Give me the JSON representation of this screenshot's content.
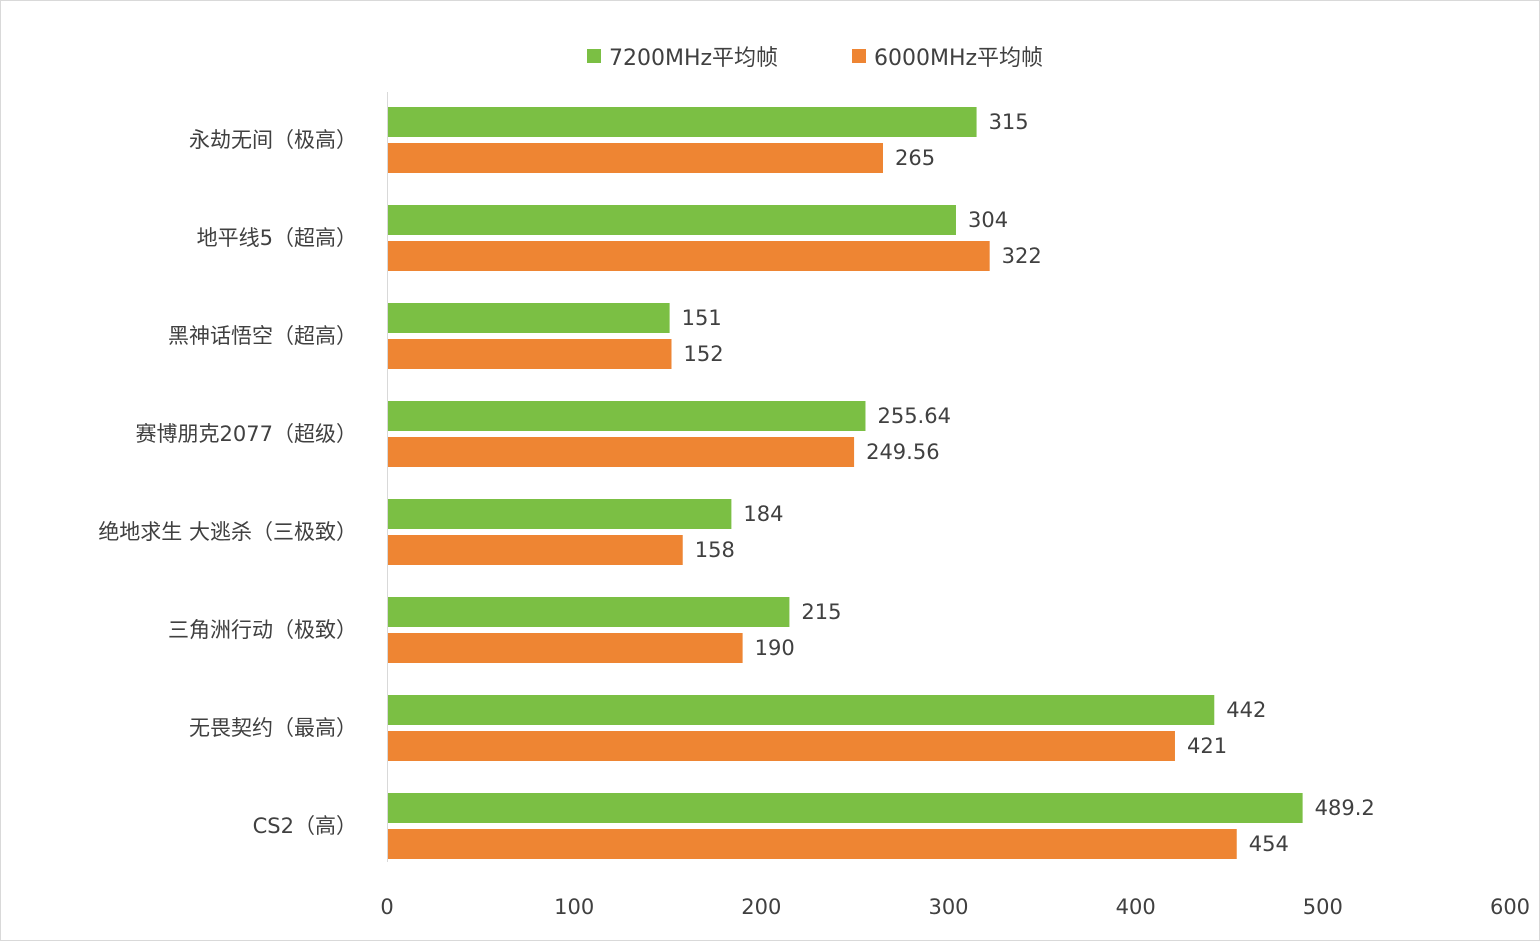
{
  "chart_data": {
    "type": "bar",
    "orientation": "horizontal",
    "categories": [
      "永劫无间（极高）",
      "地平线5（超高）",
      "黑神话悟空（超高）",
      "赛博朋克2077（超级）",
      "绝地求生 大逃杀（三极致）",
      "三角洲行动（极致）",
      "无畏契约（最高）",
      "CS2（高）"
    ],
    "series": [
      {
        "name": "7200MHz平均帧",
        "color": "#7bbf44",
        "values": [
          315,
          304,
          151,
          255.64,
          184,
          215,
          442,
          489.2
        ],
        "labels": [
          "315",
          "304",
          "151",
          "255.64",
          "184",
          "215",
          "442",
          "489.2"
        ]
      },
      {
        "name": "6000MHz平均帧",
        "color": "#ee8533",
        "values": [
          265,
          322,
          152,
          249.56,
          158,
          190,
          421,
          454
        ],
        "labels": [
          "265",
          "322",
          "152",
          "249.56",
          "158",
          "190",
          "421",
          "454"
        ]
      }
    ],
    "xlim": [
      0,
      600
    ],
    "xticks": [
      "0",
      "100",
      "200",
      "300",
      "400",
      "500",
      "600"
    ],
    "grid": false,
    "legend": "top-center"
  }
}
